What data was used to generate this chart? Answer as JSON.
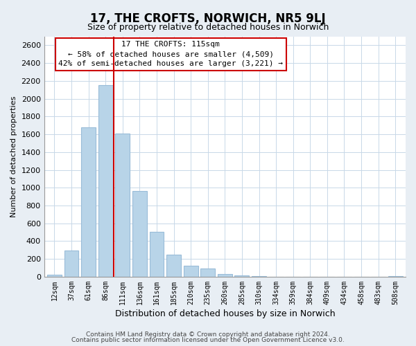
{
  "title": "17, THE CROFTS, NORWICH, NR5 9LJ",
  "subtitle": "Size of property relative to detached houses in Norwich",
  "xlabel": "Distribution of detached houses by size in Norwich",
  "ylabel": "Number of detached properties",
  "footnote1": "Contains HM Land Registry data © Crown copyright and database right 2024.",
  "footnote2": "Contains public sector information licensed under the Open Government Licence v3.0.",
  "categories": [
    "12sqm",
    "37sqm",
    "61sqm",
    "86sqm",
    "111sqm",
    "136sqm",
    "161sqm",
    "185sqm",
    "210sqm",
    "235sqm",
    "260sqm",
    "285sqm",
    "310sqm",
    "334sqm",
    "359sqm",
    "384sqm",
    "409sqm",
    "434sqm",
    "458sqm",
    "483sqm",
    "508sqm"
  ],
  "values": [
    20,
    295,
    1680,
    2150,
    1610,
    960,
    505,
    245,
    125,
    95,
    30,
    15,
    5,
    3,
    2,
    2,
    2,
    1,
    1,
    1,
    10
  ],
  "bar_color": "#b8d4e8",
  "bar_edge_color": "#99bcd8",
  "vline_color": "#cc0000",
  "annotation_title": "17 THE CROFTS: 115sqm",
  "annotation_line1": "← 58% of detached houses are smaller (4,509)",
  "annotation_line2": "42% of semi-detached houses are larger (3,221) →",
  "annotation_box_color": "#cc0000",
  "ylim": [
    0,
    2700
  ],
  "yticks": [
    0,
    200,
    400,
    600,
    800,
    1000,
    1200,
    1400,
    1600,
    1800,
    2000,
    2200,
    2400,
    2600
  ],
  "bg_color": "#e8eef4",
  "plot_bg_color": "#ffffff",
  "grid_color": "#c8d8e8"
}
